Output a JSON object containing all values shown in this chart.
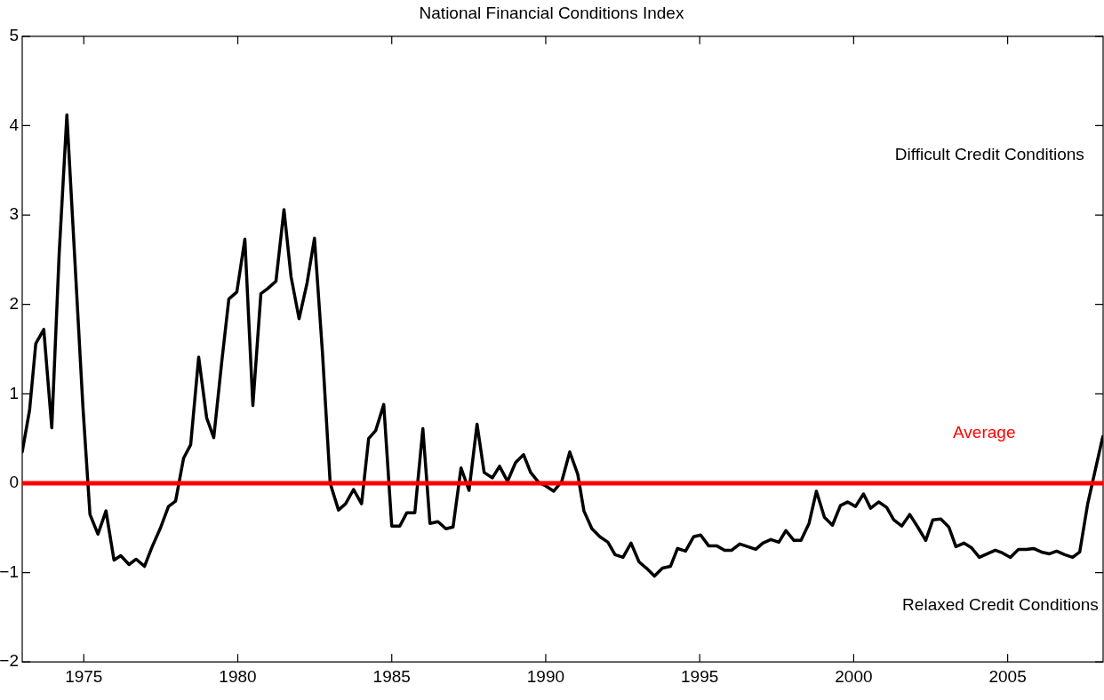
{
  "chart_data": {
    "type": "line",
    "title": "National Financial Conditions Index",
    "x": [
      1973.0,
      1973.24,
      1973.44,
      1973.7,
      1973.96,
      1974.2,
      1974.45,
      1974.97,
      1975.2,
      1975.46,
      1975.72,
      1975.98,
      1976.2,
      1976.47,
      1976.7,
      1976.97,
      1977.22,
      1977.49,
      1977.75,
      1977.98,
      1978.24,
      1978.47,
      1978.73,
      1978.99,
      1979.22,
      1979.48,
      1979.71,
      1979.97,
      1980.23,
      1980.49,
      1980.75,
      1980.98,
      1981.24,
      1981.5,
      1981.73,
      1981.99,
      1982.25,
      1982.49,
      1982.75,
      1983.0,
      1983.27,
      1983.5,
      1983.76,
      1984.02,
      1984.25,
      1984.48,
      1984.74,
      1985.0,
      1985.26,
      1985.49,
      1985.75,
      1986.01,
      1986.24,
      1986.5,
      1986.76,
      1986.99,
      1987.25,
      1987.51,
      1987.77,
      1988.0,
      1988.27,
      1988.5,
      1988.76,
      1989.02,
      1989.28,
      1989.51,
      1989.77,
      1990.0,
      1990.26,
      1990.52,
      1990.78,
      1991.04,
      1991.24,
      1991.5,
      1991.76,
      1992.02,
      1992.25,
      1992.51,
      1992.77,
      1993.03,
      1993.27,
      1993.53,
      1993.79,
      1994.05,
      1994.28,
      1994.54,
      1994.8,
      1995.03,
      1995.29,
      1995.55,
      1995.81,
      1996.04,
      1996.3,
      1996.56,
      1996.82,
      1997.05,
      1997.31,
      1997.57,
      1997.8,
      1998.06,
      1998.29,
      1998.55,
      1998.79,
      1999.05,
      1999.31,
      1999.57,
      1999.8,
      2000.06,
      2000.32,
      2000.55,
      2000.81,
      2001.07,
      2001.3,
      2001.56,
      2001.82,
      2002.08,
      2002.34,
      2002.57,
      2002.83,
      2003.09,
      2003.32,
      2003.58,
      2003.82,
      2004.08,
      2004.34,
      2004.6,
      2004.83,
      2005.09,
      2005.35,
      2005.61,
      2005.84,
      2006.1,
      2006.36,
      2006.59,
      2006.85,
      2007.11,
      2007.34,
      2007.6,
      2007.86,
      2008.09
    ],
    "series": [
      {
        "color": "#000000",
        "values": [
          0.35,
          0.82,
          1.56,
          1.72,
          0.62,
          2.57,
          4.12,
          0.86,
          -0.35,
          -0.57,
          -0.31,
          -0.86,
          -0.81,
          -0.91,
          -0.85,
          -0.93,
          -0.71,
          -0.5,
          -0.26,
          -0.2,
          0.28,
          0.43,
          1.41,
          0.73,
          0.51,
          1.36,
          2.06,
          2.14,
          2.73,
          0.87,
          2.12,
          2.18,
          2.26,
          3.06,
          2.31,
          1.84,
          2.24,
          2.74,
          1.46,
          0.0,
          -0.3,
          -0.23,
          -0.07,
          -0.23,
          0.5,
          0.59,
          0.88,
          -0.48,
          -0.48,
          -0.33,
          -0.33,
          0.61,
          -0.45,
          -0.43,
          -0.51,
          -0.49,
          0.17,
          -0.08,
          0.66,
          0.12,
          0.06,
          0.19,
          0.02,
          0.23,
          0.32,
          0.12,
          0.01,
          -0.03,
          -0.09,
          0.02,
          0.35,
          0.1,
          -0.31,
          -0.51,
          -0.6,
          -0.66,
          -0.8,
          -0.83,
          -0.67,
          -0.88,
          -0.95,
          -1.04,
          -0.95,
          -0.93,
          -0.73,
          -0.76,
          -0.6,
          -0.58,
          -0.7,
          -0.7,
          -0.75,
          -0.75,
          -0.68,
          -0.71,
          -0.74,
          -0.67,
          -0.63,
          -0.66,
          -0.53,
          -0.64,
          -0.64,
          -0.45,
          -0.09,
          -0.38,
          -0.47,
          -0.25,
          -0.21,
          -0.26,
          -0.12,
          -0.28,
          -0.21,
          -0.27,
          -0.41,
          -0.48,
          -0.35,
          -0.49,
          -0.64,
          -0.41,
          -0.4,
          -0.49,
          -0.71,
          -0.67,
          -0.72,
          -0.83,
          -0.79,
          -0.75,
          -0.78,
          -0.83,
          -0.74,
          -0.74,
          -0.73,
          -0.77,
          -0.79,
          -0.76,
          -0.8,
          -0.83,
          -0.77,
          -0.23,
          0.17,
          0.52
        ]
      }
    ],
    "xlim": [
      1973.0,
      2008.1
    ],
    "xticks": [
      1975,
      1980,
      1985,
      1990,
      1995,
      2000,
      2005
    ],
    "ylim": [
      -2,
      5
    ],
    "yticks": [
      -2,
      -1,
      0,
      1,
      2,
      3,
      4,
      5
    ],
    "ref_lines": [
      {
        "axis": "y",
        "value": 0,
        "label": "Average",
        "color": "#ff0000"
      }
    ],
    "annotations": [
      "Difficult Credit Conditions",
      "Relaxed Credit Conditions"
    ],
    "grid": false,
    "legend": false,
    "marker": "none",
    "line_style": "solid"
  }
}
